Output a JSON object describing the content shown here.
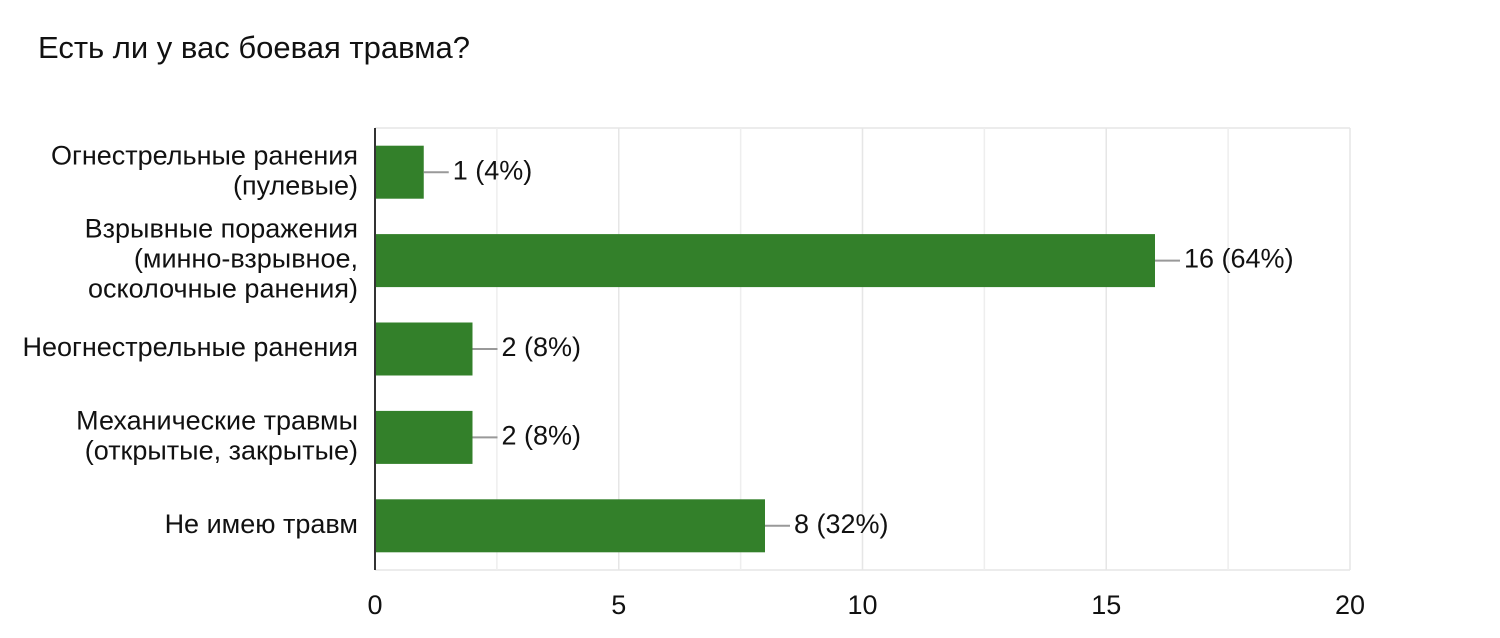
{
  "chart_data": {
    "type": "bar",
    "orientation": "horizontal",
    "title": "Есть ли у вас боевая травма?",
    "categories": [
      [
        "Огнестрельные ранения",
        "(пулевые)"
      ],
      [
        "Взрывные поражения",
        "(минно-взрывное,",
        "осколочные ранения)"
      ],
      [
        "Неогнестрельные ранения"
      ],
      [
        "Механические травмы",
        "(открытые, закрытые)"
      ],
      [
        "Не имею травм"
      ]
    ],
    "values": [
      1,
      16,
      2,
      2,
      8
    ],
    "value_labels": [
      "1 (4%)",
      "16 (64%)",
      "2 (8%)",
      "2 (8%)",
      "8 (32%)"
    ],
    "color": "#33802a",
    "xlim": [
      0,
      20
    ],
    "xticks": [
      0,
      5,
      10,
      15,
      20
    ],
    "xminorticks": [
      2.5,
      7.5,
      12.5,
      17.5
    ],
    "grid": true
  }
}
